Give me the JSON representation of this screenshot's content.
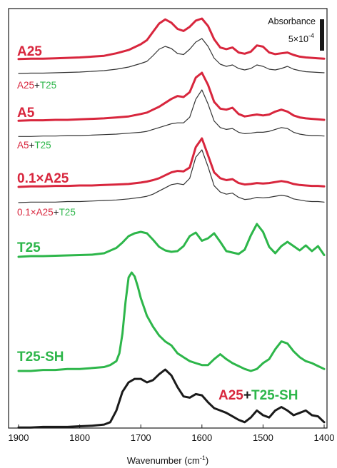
{
  "chart_data": {
    "type": "line",
    "xlabel": "Wavenumber (cm",
    "xlabel_sup": "-1",
    "xlabel_tail": ")",
    "xlim": [
      1900,
      1400
    ],
    "x_ticks": [
      "1900",
      "1800",
      "1700",
      "1600",
      "1500",
      "1400"
    ],
    "y_ticks_shown": false,
    "grid": false,
    "scale_bar": {
      "title": "Absorbance",
      "value_text": "5×10",
      "value_sup": "-4"
    },
    "colors": {
      "red": "#d8263d",
      "green": "#2db64a",
      "black": "#1a1a1a",
      "thin": "#333333"
    },
    "series": [
      {
        "label_parts": [
          {
            "text": "A25",
            "color": "red"
          }
        ],
        "x": [
          1900,
          1880,
          1860,
          1840,
          1820,
          1800,
          1780,
          1760,
          1740,
          1720,
          1700,
          1690,
          1680,
          1670,
          1660,
          1650,
          1640,
          1630,
          1620,
          1610,
          1600,
          1590,
          1580,
          1570,
          1560,
          1550,
          1540,
          1530,
          1520,
          1510,
          1500,
          1490,
          1480,
          1470,
          1460,
          1450,
          1440,
          1430,
          1420,
          1410,
          1400
        ],
        "y": [
          0.02,
          0.03,
          0.03,
          0.04,
          0.05,
          0.06,
          0.08,
          0.1,
          0.16,
          0.24,
          0.38,
          0.48,
          0.68,
          0.88,
          0.98,
          0.9,
          0.75,
          0.7,
          0.8,
          0.95,
          1.0,
          0.82,
          0.5,
          0.3,
          0.26,
          0.3,
          0.18,
          0.15,
          0.2,
          0.35,
          0.32,
          0.18,
          0.14,
          0.16,
          0.18,
          0.12,
          0.08,
          0.06,
          0.05,
          0.04,
          0.03
        ]
      },
      {
        "label_parts": [
          {
            "text": "A25",
            "color": "red"
          },
          {
            "text": "+",
            "color": "black"
          },
          {
            "text": "T25",
            "color": "green"
          }
        ],
        "x": [
          1900,
          1880,
          1860,
          1840,
          1820,
          1800,
          1780,
          1760,
          1740,
          1720,
          1700,
          1690,
          1680,
          1670,
          1660,
          1650,
          1640,
          1630,
          1620,
          1610,
          1600,
          1590,
          1580,
          1570,
          1560,
          1550,
          1540,
          1530,
          1520,
          1510,
          1500,
          1490,
          1480,
          1470,
          1460,
          1450,
          1440,
          1430,
          1420,
          1410,
          1400
        ],
        "y": [
          0.02,
          0.03,
          0.03,
          0.04,
          0.05,
          0.06,
          0.08,
          0.1,
          0.14,
          0.2,
          0.3,
          0.36,
          0.52,
          0.7,
          0.78,
          0.72,
          0.58,
          0.55,
          0.7,
          0.9,
          1.0,
          0.78,
          0.45,
          0.28,
          0.22,
          0.26,
          0.16,
          0.12,
          0.16,
          0.26,
          0.22,
          0.14,
          0.12,
          0.16,
          0.22,
          0.14,
          0.1,
          0.07,
          0.06,
          0.05,
          0.04
        ]
      },
      {
        "label_parts": [
          {
            "text": "A5",
            "color": "red"
          }
        ],
        "x": [
          1900,
          1880,
          1860,
          1840,
          1820,
          1800,
          1780,
          1760,
          1740,
          1720,
          1700,
          1690,
          1680,
          1670,
          1660,
          1650,
          1640,
          1630,
          1620,
          1610,
          1600,
          1590,
          1580,
          1570,
          1560,
          1550,
          1540,
          1530,
          1520,
          1510,
          1500,
          1490,
          1480,
          1470,
          1460,
          1450,
          1440,
          1430,
          1420,
          1410,
          1400
        ],
        "y": [
          0.01,
          0.02,
          0.02,
          0.03,
          0.03,
          0.04,
          0.05,
          0.06,
          0.08,
          0.1,
          0.15,
          0.18,
          0.24,
          0.3,
          0.38,
          0.46,
          0.52,
          0.5,
          0.6,
          0.9,
          1.0,
          0.75,
          0.4,
          0.26,
          0.24,
          0.28,
          0.15,
          0.1,
          0.12,
          0.14,
          0.12,
          0.14,
          0.2,
          0.24,
          0.2,
          0.12,
          0.08,
          0.06,
          0.05,
          0.04,
          0.03
        ]
      },
      {
        "label_parts": [
          {
            "text": "A5",
            "color": "red"
          },
          {
            "text": "+",
            "color": "black"
          },
          {
            "text": "T25",
            "color": "green"
          }
        ],
        "x": [
          1900,
          1880,
          1860,
          1840,
          1820,
          1800,
          1780,
          1760,
          1740,
          1720,
          1700,
          1690,
          1680,
          1670,
          1660,
          1650,
          1640,
          1630,
          1620,
          1610,
          1600,
          1590,
          1580,
          1570,
          1560,
          1550,
          1540,
          1530,
          1520,
          1510,
          1500,
          1490,
          1480,
          1470,
          1460,
          1450,
          1440,
          1430,
          1420,
          1410,
          1400
        ],
        "y": [
          0.01,
          0.01,
          0.02,
          0.02,
          0.03,
          0.03,
          0.04,
          0.05,
          0.06,
          0.08,
          0.1,
          0.12,
          0.16,
          0.2,
          0.24,
          0.28,
          0.3,
          0.3,
          0.42,
          0.8,
          1.0,
          0.7,
          0.34,
          0.2,
          0.16,
          0.18,
          0.1,
          0.07,
          0.08,
          0.1,
          0.1,
          0.12,
          0.16,
          0.2,
          0.18,
          0.1,
          0.06,
          0.04,
          0.03,
          0.03,
          0.02
        ]
      },
      {
        "label_parts": [
          {
            "text": "0.1×A25",
            "color": "red"
          }
        ],
        "x": [
          1900,
          1880,
          1860,
          1840,
          1820,
          1800,
          1780,
          1760,
          1740,
          1720,
          1700,
          1690,
          1680,
          1670,
          1660,
          1650,
          1640,
          1630,
          1620,
          1610,
          1600,
          1590,
          1580,
          1570,
          1560,
          1550,
          1540,
          1530,
          1520,
          1510,
          1500,
          1490,
          1480,
          1470,
          1460,
          1450,
          1440,
          1430,
          1420,
          1410,
          1400
        ],
        "y": [
          0.0,
          0.01,
          0.01,
          0.02,
          0.02,
          0.03,
          0.03,
          0.04,
          0.05,
          0.06,
          0.09,
          0.11,
          0.14,
          0.18,
          0.24,
          0.3,
          0.33,
          0.32,
          0.4,
          0.82,
          1.0,
          0.65,
          0.3,
          0.18,
          0.14,
          0.16,
          0.08,
          0.05,
          0.06,
          0.08,
          0.07,
          0.08,
          0.1,
          0.12,
          0.1,
          0.06,
          0.04,
          0.03,
          0.02,
          0.02,
          0.01
        ]
      },
      {
        "label_parts": [
          {
            "text": "0.1×A25",
            "color": "red"
          },
          {
            "text": "+",
            "color": "black"
          },
          {
            "text": "T25",
            "color": "green"
          }
        ],
        "x": [
          1900,
          1880,
          1860,
          1840,
          1820,
          1800,
          1780,
          1760,
          1740,
          1720,
          1700,
          1690,
          1680,
          1670,
          1660,
          1650,
          1640,
          1630,
          1620,
          1610,
          1600,
          1590,
          1580,
          1570,
          1560,
          1550,
          1540,
          1530,
          1520,
          1510,
          1500,
          1490,
          1480,
          1470,
          1460,
          1450,
          1440,
          1430,
          1420,
          1410,
          1400
        ],
        "y": [
          0.0,
          0.01,
          0.01,
          0.01,
          0.02,
          0.02,
          0.03,
          0.04,
          0.05,
          0.07,
          0.1,
          0.12,
          0.16,
          0.22,
          0.28,
          0.34,
          0.36,
          0.34,
          0.46,
          0.86,
          1.0,
          0.68,
          0.32,
          0.2,
          0.16,
          0.18,
          0.1,
          0.06,
          0.07,
          0.1,
          0.09,
          0.1,
          0.12,
          0.14,
          0.12,
          0.07,
          0.05,
          0.03,
          0.02,
          0.02,
          0.01
        ]
      },
      {
        "label_parts": [
          {
            "text": "T25",
            "color": "green"
          }
        ],
        "x": [
          1900,
          1880,
          1860,
          1840,
          1820,
          1800,
          1780,
          1760,
          1740,
          1730,
          1720,
          1710,
          1700,
          1690,
          1680,
          1670,
          1660,
          1650,
          1640,
          1630,
          1620,
          1610,
          1600,
          1590,
          1580,
          1570,
          1560,
          1550,
          1540,
          1530,
          1520,
          1510,
          1500,
          1490,
          1480,
          1470,
          1460,
          1450,
          1440,
          1430,
          1420,
          1410,
          1400
        ],
        "y": [
          0.0,
          0.02,
          0.02,
          0.03,
          0.04,
          0.05,
          0.06,
          0.1,
          0.25,
          0.4,
          0.58,
          0.66,
          0.7,
          0.66,
          0.48,
          0.28,
          0.18,
          0.14,
          0.16,
          0.3,
          0.58,
          0.68,
          0.45,
          0.52,
          0.66,
          0.42,
          0.16,
          0.12,
          0.08,
          0.2,
          0.6,
          0.92,
          0.7,
          0.28,
          0.1,
          0.3,
          0.42,
          0.3,
          0.18,
          0.32,
          0.16,
          0.3,
          0.05
        ]
      },
      {
        "label_parts": [
          {
            "text": "T25-SH",
            "color": "green"
          }
        ],
        "x": [
          1900,
          1880,
          1860,
          1840,
          1820,
          1800,
          1780,
          1760,
          1750,
          1740,
          1735,
          1730,
          1725,
          1720,
          1715,
          1710,
          1705,
          1700,
          1690,
          1680,
          1670,
          1660,
          1650,
          1640,
          1630,
          1620,
          1610,
          1600,
          1590,
          1580,
          1570,
          1560,
          1550,
          1540,
          1530,
          1520,
          1510,
          1500,
          1490,
          1480,
          1470,
          1460,
          1450,
          1440,
          1430,
          1420,
          1410,
          1400
        ],
        "y": [
          0.0,
          0.0,
          0.01,
          0.01,
          0.02,
          0.02,
          0.03,
          0.04,
          0.06,
          0.1,
          0.18,
          0.38,
          0.7,
          0.95,
          1.0,
          0.96,
          0.86,
          0.74,
          0.56,
          0.45,
          0.36,
          0.3,
          0.26,
          0.18,
          0.14,
          0.1,
          0.08,
          0.06,
          0.06,
          0.12,
          0.17,
          0.12,
          0.08,
          0.05,
          0.02,
          0.0,
          0.02,
          0.08,
          0.12,
          0.22,
          0.3,
          0.28,
          0.2,
          0.14,
          0.1,
          0.08,
          0.05,
          0.02
        ]
      },
      {
        "label_parts": [
          {
            "text": "A25",
            "color": "red"
          },
          {
            "text": "+",
            "color": "black"
          },
          {
            "text": "T25-SH",
            "color": "green"
          }
        ],
        "x": [
          1900,
          1880,
          1860,
          1840,
          1820,
          1800,
          1780,
          1760,
          1750,
          1740,
          1730,
          1720,
          1710,
          1700,
          1690,
          1680,
          1670,
          1660,
          1650,
          1640,
          1630,
          1620,
          1610,
          1600,
          1590,
          1580,
          1570,
          1560,
          1550,
          1540,
          1530,
          1520,
          1510,
          1500,
          1490,
          1480,
          1470,
          1460,
          1450,
          1440,
          1430,
          1420,
          1410,
          1400
        ],
        "y": [
          0.01,
          0.01,
          0.02,
          0.02,
          0.02,
          0.03,
          0.04,
          0.06,
          0.1,
          0.3,
          0.62,
          0.78,
          0.84,
          0.84,
          0.78,
          0.82,
          0.92,
          1.0,
          0.9,
          0.7,
          0.54,
          0.52,
          0.58,
          0.56,
          0.44,
          0.34,
          0.3,
          0.26,
          0.2,
          0.14,
          0.1,
          0.18,
          0.3,
          0.22,
          0.18,
          0.3,
          0.36,
          0.3,
          0.22,
          0.26,
          0.3,
          0.22,
          0.2,
          0.1
        ]
      }
    ]
  }
}
